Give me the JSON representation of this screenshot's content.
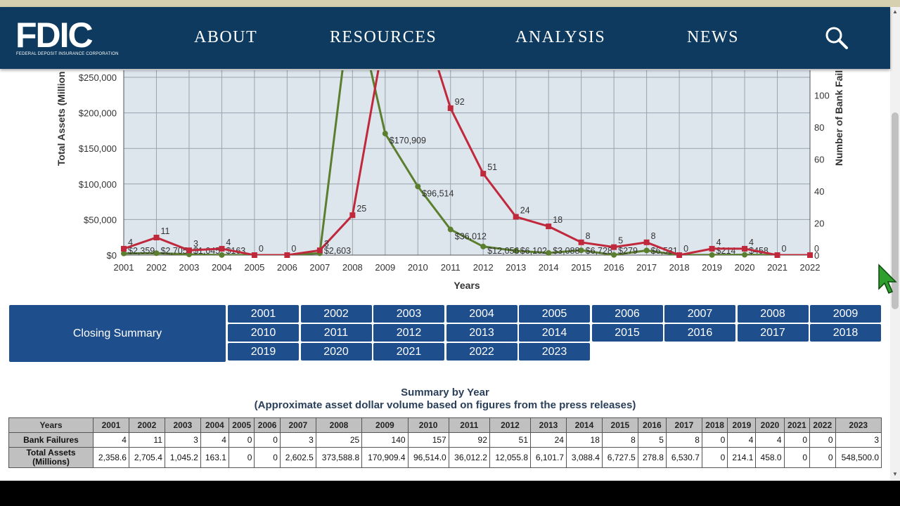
{
  "header": {
    "logo_text": "FDIC",
    "logo_subtitle": "FEDERAL DEPOSIT INSURANCE CORPORATION",
    "nav": [
      "ABOUT",
      "RESOURCES",
      "ANALYSIS",
      "NEWS"
    ]
  },
  "chart_data": {
    "type": "line",
    "xlabel": "Years",
    "ylabel_left": "Total Assets (Million",
    "ylabel_right": "Number of Bank Fail",
    "x": [
      "2001",
      "2002",
      "2003",
      "2004",
      "2005",
      "2006",
      "2007",
      "2008",
      "2009",
      "2010",
      "2011",
      "2012",
      "2013",
      "2014",
      "2015",
      "2016",
      "2017",
      "2018",
      "2019",
      "2020",
      "2021",
      "2022"
    ],
    "y_left_ticks": [
      "$0",
      "$50,000",
      "$100,000",
      "$150,000",
      "$200,000",
      "$250,000"
    ],
    "y_right_ticks": [
      "0",
      "20",
      "40",
      "60",
      "80",
      "100"
    ],
    "ylim_left": [
      0,
      250000
    ],
    "ylim_right": [
      0,
      110
    ],
    "grid": true,
    "series": [
      {
        "axis": "left",
        "color": "#5b7f2e",
        "values": [
          2358.6,
          2705.4,
          1045.2,
          163.1,
          0,
          0,
          2602.5,
          373588.8,
          170909.4,
          96514.0,
          36012.2,
          12055.8,
          6101.7,
          3088.4,
          6727.5,
          278.8,
          6530.7,
          0,
          214.1,
          458.0,
          0,
          0
        ],
        "labels": [
          "$2,359",
          "$2,705",
          "$1,045",
          "$163",
          "",
          "",
          "$2,603",
          "",
          "$170,909",
          "$96,514",
          "$36,012",
          "$12,056",
          "$6,102",
          "$3,088",
          "$6,728",
          "$279",
          "$6,531",
          "",
          "$214",
          "$458",
          "",
          ""
        ]
      },
      {
        "axis": "right",
        "color": "#c0283c",
        "values": [
          4,
          11,
          3,
          4,
          0,
          0,
          3,
          25,
          140,
          157,
          92,
          51,
          24,
          18,
          8,
          5,
          8,
          0,
          4,
          4,
          0,
          0
        ],
        "labels": [
          "4",
          "11",
          "3",
          "4",
          "0",
          "0",
          "3",
          "25",
          "",
          "",
          "92",
          "51",
          "24",
          "18",
          "8",
          "5",
          "8",
          "0",
          "4",
          "4",
          "0",
          "0"
        ]
      }
    ]
  },
  "closing": {
    "label": "Closing Summary",
    "years": [
      "2001",
      "2002",
      "2003",
      "2004",
      "2005",
      "2006",
      "2007",
      "2008",
      "2009",
      "2010",
      "2011",
      "2012",
      "2013",
      "2014",
      "2015",
      "2016",
      "2017",
      "2018",
      "2019",
      "2020",
      "2021",
      "2022",
      "2023"
    ]
  },
  "summary": {
    "title": "Summary by Year",
    "subtitle": "(Approximate asset dollar volume based on figures from the press releases)",
    "header_label": "Years",
    "years": [
      "2001",
      "2002",
      "2003",
      "2004",
      "2005",
      "2006",
      "2007",
      "2008",
      "2009",
      "2010",
      "2011",
      "2012",
      "2013",
      "2014",
      "2015",
      "2016",
      "2017",
      "2018",
      "2019",
      "2020",
      "2021",
      "2022",
      "2023"
    ],
    "rows": [
      {
        "label": "Bank Failures",
        "values": [
          "4",
          "11",
          "3",
          "4",
          "0",
          "0",
          "3",
          "25",
          "140",
          "157",
          "92",
          "51",
          "24",
          "18",
          "8",
          "5",
          "8",
          "0",
          "4",
          "4",
          "0",
          "0",
          "3"
        ]
      },
      {
        "label": "Total Assets\n(Millions)",
        "values": [
          "2,358.6",
          "2,705.4",
          "1,045.2",
          "163.1",
          "0",
          "0",
          "2,602.5",
          "373,588.8",
          "170,909.4",
          "96,514.0",
          "36,012.2",
          "12,055.8",
          "6,101.7",
          "3,088.4",
          "6,727.5",
          "278.8",
          "6,530.7",
          "0",
          "214.1",
          "458.0",
          "0",
          "0",
          "548,500.0"
        ]
      }
    ]
  }
}
